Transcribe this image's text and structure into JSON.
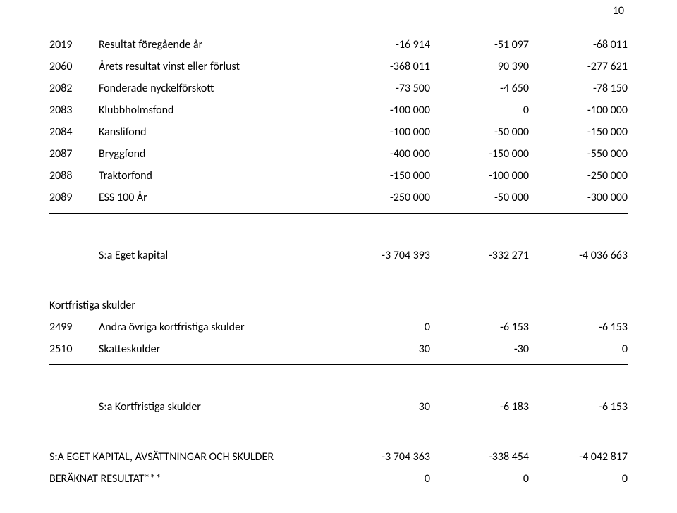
{
  "page_number": "10",
  "rows_upper": [
    {
      "code": "2019",
      "desc": "Resultat föregående år",
      "c1": "-16 914",
      "c2": "-51 097",
      "c3": "-68 011"
    },
    {
      "code": "2060",
      "desc": "Årets resultat vinst eller förlust",
      "c1": "-368 011",
      "c2": "90 390",
      "c3": "-277 621"
    },
    {
      "code": "2082",
      "desc": "Fonderade nyckelförskott",
      "c1": "-73 500",
      "c2": "-4 650",
      "c3": "-78 150"
    },
    {
      "code": "2083",
      "desc": "Klubbholmsfond",
      "c1": "-100 000",
      "c2": "0",
      "c3": "-100 000"
    },
    {
      "code": "2084",
      "desc": "Kanslifond",
      "c1": "-100 000",
      "c2": "-50 000",
      "c3": "-150 000"
    },
    {
      "code": "2087",
      "desc": "Bryggfond",
      "c1": "-400 000",
      "c2": "-150 000",
      "c3": "-550 000"
    },
    {
      "code": "2088",
      "desc": "Traktorfond",
      "c1": "-150 000",
      "c2": "-100 000",
      "c3": "-250 000"
    },
    {
      "code": "2089",
      "desc": "ESS 100 År",
      "c1": "-250 000",
      "c2": "-50 000",
      "c3": "-300 000"
    }
  ],
  "eget_kapital": {
    "desc": "S:a Eget kapital",
    "c1": "-3 704 393",
    "c2": "-332 271",
    "c3": "-4 036 663"
  },
  "kort_section": "Kortfristiga skulder",
  "rows_kort": [
    {
      "code": "2499",
      "desc": "Andra övriga  kortfristiga skulder",
      "c1": "0",
      "c2": "-6 153",
      "c3": "-6 153"
    },
    {
      "code": "2510",
      "desc": "Skatteskulder",
      "c1": "30",
      "c2": "-30",
      "c3": "0"
    }
  ],
  "kort_sum": {
    "desc": "S:a Kortfristiga skulder",
    "c1": "30",
    "c2": "-6 183",
    "c3": "-6 153"
  },
  "grand_total": {
    "desc": "S:A EGET KAPITAL, AVSÄTTNINGAR OCH SKULDER",
    "c1": "-3 704 363",
    "c2": "-338 454",
    "c3": "-4 042 817"
  },
  "calc_result": {
    "desc": "BERÄKNAT RESULTAT***",
    "c1": "0",
    "c2": "0",
    "c3": "0"
  }
}
